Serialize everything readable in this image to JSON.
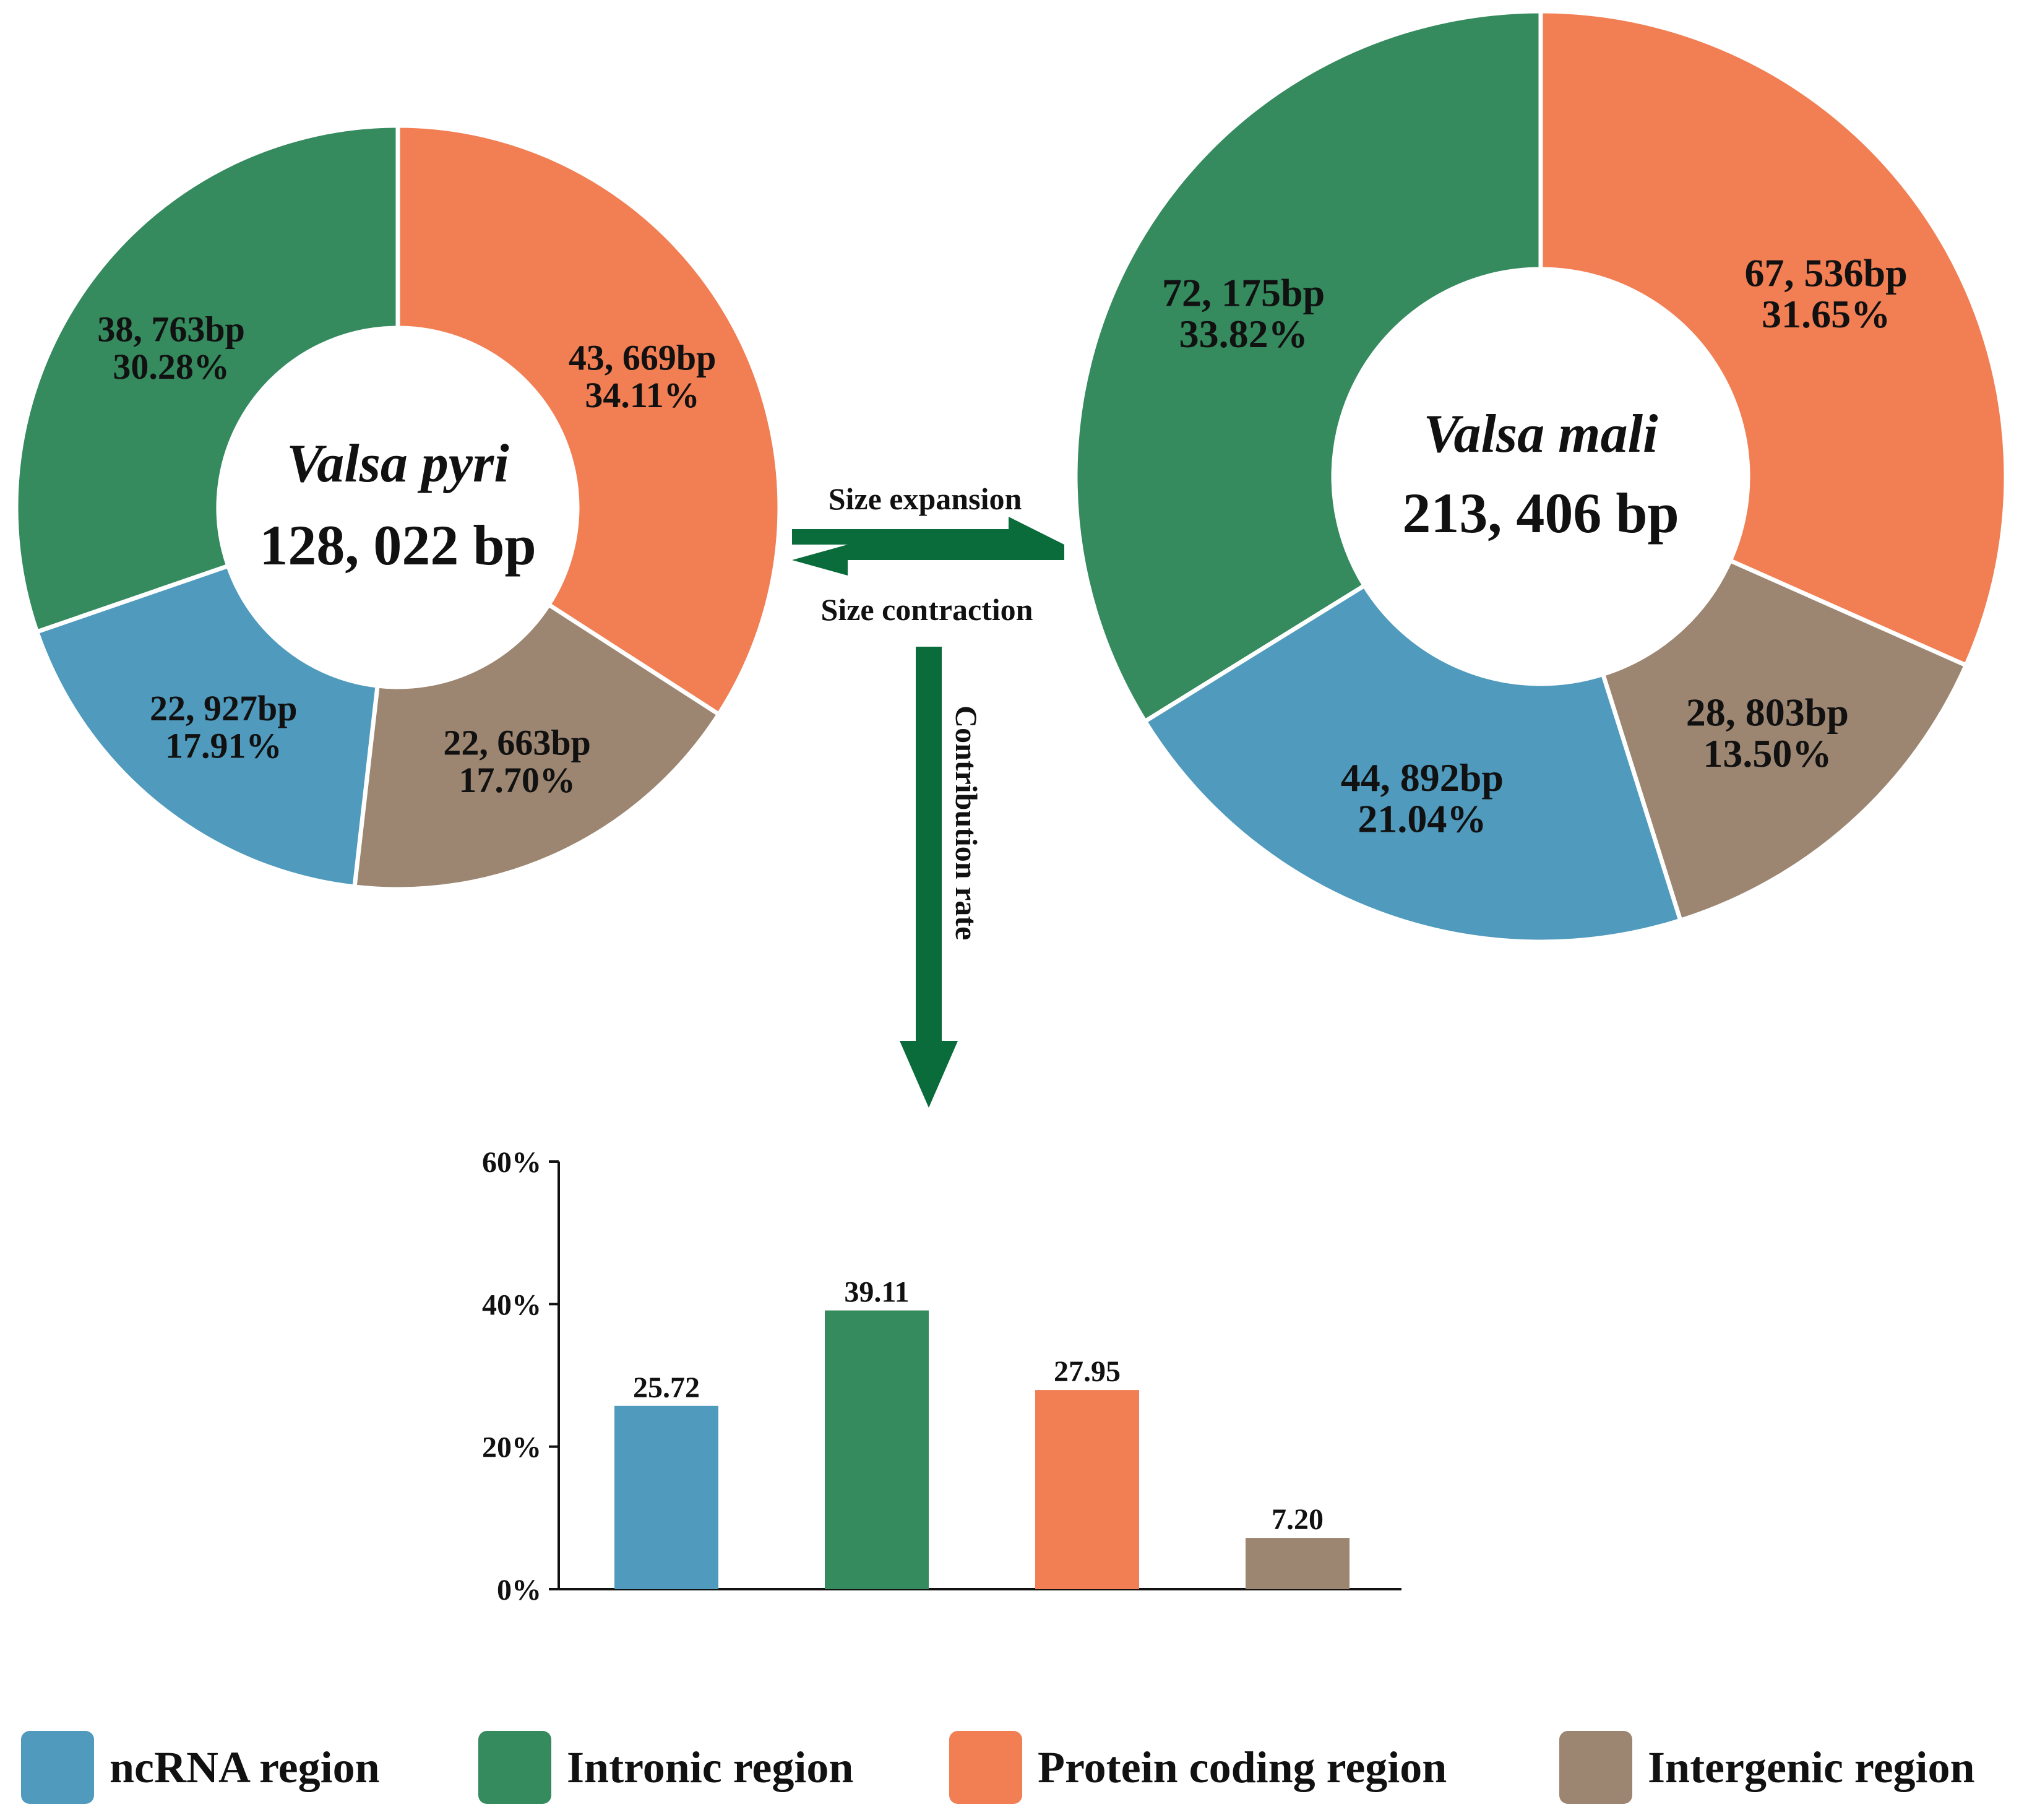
{
  "colors": {
    "ncrna": "#4f9abd",
    "intronic": "#358a5e",
    "protein": "#f27e53",
    "intergenic": "#9c8672",
    "arrow": "#0a6b3b"
  },
  "legend": [
    {
      "key": "ncrna",
      "label": "ncRNA region"
    },
    {
      "key": "intronic",
      "label": "Intronic region"
    },
    {
      "key": "protein",
      "label": "Protein coding region"
    },
    {
      "key": "intergenic",
      "label": "Intergenic region"
    }
  ],
  "arrows": {
    "expansion": "Size expansion",
    "contraction": "Size contraction",
    "contribution": "Contribution rate"
  },
  "chart_data": [
    {
      "type": "pie",
      "variant": "donut",
      "title": "Valsa pyri",
      "center_label": "128, 022 bp",
      "series": [
        {
          "key": "protein",
          "label": "43, 669bp",
          "percent_label": "34.11%",
          "value": 34.11
        },
        {
          "key": "intergenic",
          "label": "22, 663bp",
          "percent_label": "17.70%",
          "value": 17.7
        },
        {
          "key": "ncrna",
          "label": "22, 927bp",
          "percent_label": "17.91%",
          "value": 17.91
        },
        {
          "key": "intronic",
          "label": "38, 763bp",
          "percent_label": "30.28%",
          "value": 30.28
        }
      ]
    },
    {
      "type": "pie",
      "variant": "donut",
      "title": "Valsa mali",
      "center_label": "213, 406 bp",
      "series": [
        {
          "key": "protein",
          "label": "67, 536bp",
          "percent_label": "31.65%",
          "value": 31.65
        },
        {
          "key": "intergenic",
          "label": "28, 803bp",
          "percent_label": "13.50%",
          "value": 13.5
        },
        {
          "key": "ncrna",
          "label": "44, 892bp",
          "percent_label": "21.04%",
          "value": 21.04
        },
        {
          "key": "intronic",
          "label": "72, 175bp",
          "percent_label": "33.82%",
          "value": 33.82
        }
      ]
    },
    {
      "type": "bar",
      "title": "",
      "xlabel": "",
      "ylabel": "",
      "ylim": [
        0,
        60
      ],
      "yticks": [
        "0%",
        "20%",
        "40%",
        "60%"
      ],
      "ytick_values": [
        0,
        20,
        40,
        60
      ],
      "grid": false,
      "bars": [
        {
          "key": "ncrna",
          "value": 25.72,
          "label": "25.72"
        },
        {
          "key": "intronic",
          "value": 39.11,
          "label": "39.11"
        },
        {
          "key": "protein",
          "value": 27.95,
          "label": "27.95"
        },
        {
          "key": "intergenic",
          "value": 7.2,
          "label": "7.20"
        }
      ]
    }
  ]
}
